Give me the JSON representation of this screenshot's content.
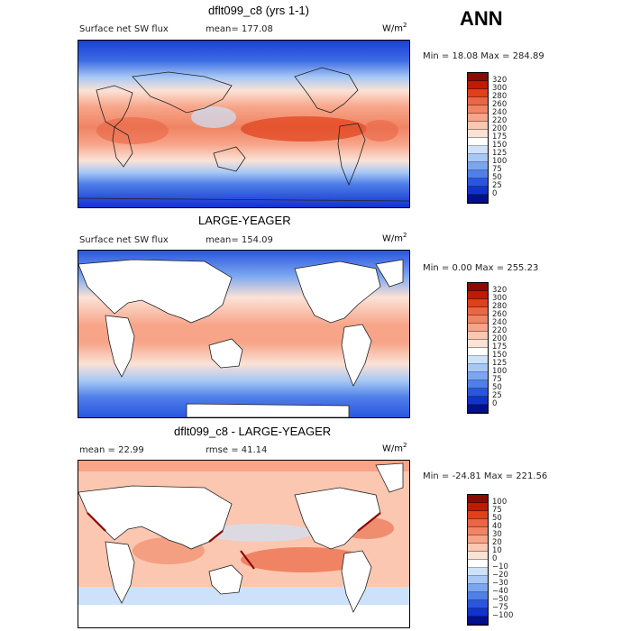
{
  "annotation": "ANN",
  "panels": [
    {
      "title": "dflt099_c8 (yrs 1-1)",
      "left_label": "Surface net SW flux",
      "stat_label": "mean= 177.08",
      "units": "W/m",
      "units_sup": "2",
      "minmax": "Min =  18.08 Max = 284.89",
      "colorbar_ticks": [
        "320",
        "300",
        "280",
        "260",
        "240",
        "220",
        "200",
        "175",
        "150",
        "125",
        "100",
        "75",
        "50",
        "25",
        "0"
      ],
      "colorbar_colors": [
        "#8c0a00",
        "#c01a00",
        "#e0401a",
        "#ea6644",
        "#f08464",
        "#f7a488",
        "#fbc7b0",
        "#fbe2d6",
        "#ffffff",
        "#cde2fa",
        "#a7c8f5",
        "#7aa6f0",
        "#4f7fe8",
        "#2a55df",
        "#1232cf",
        "#020f8e"
      ]
    },
    {
      "title": "LARGE-YEAGER",
      "left_label": "Surface net SW flux",
      "stat_label": "mean= 154.09",
      "units": "W/m",
      "units_sup": "2",
      "minmax": "Min =   0.00 Max = 255.23",
      "colorbar_ticks": [
        "320",
        "300",
        "280",
        "260",
        "240",
        "220",
        "200",
        "175",
        "150",
        "125",
        "100",
        "75",
        "50",
        "25",
        "0"
      ],
      "colorbar_colors": [
        "#8c0a00",
        "#c01a00",
        "#e0401a",
        "#ea6644",
        "#f08464",
        "#f7a488",
        "#fbc7b0",
        "#fbe2d6",
        "#ffffff",
        "#cde2fa",
        "#a7c8f5",
        "#7aa6f0",
        "#4f7fe8",
        "#2a55df",
        "#1232cf",
        "#020f8e"
      ]
    },
    {
      "title": "dflt099_c8 - LARGE-YEAGER",
      "left_label": "mean =  22.99",
      "stat_label": "rmse =  41.14",
      "units": "W/m",
      "units_sup": "2",
      "minmax": "Min = -24.81 Max = 221.56",
      "colorbar_ticks": [
        "100",
        "75",
        "50",
        "40",
        "30",
        "20",
        "10",
        "0",
        "−10",
        "−20",
        "−30",
        "−40",
        "−50",
        "−75",
        "−100"
      ],
      "colorbar_colors": [
        "#8c0a00",
        "#c01a00",
        "#e0401a",
        "#ea6644",
        "#f08464",
        "#f7a488",
        "#fbc7b0",
        "#fbe2d6",
        "#ffffff",
        "#cde2fa",
        "#a7c8f5",
        "#7aa6f0",
        "#4f7fe8",
        "#2a55df",
        "#1232cf",
        "#020f8e"
      ]
    }
  ]
}
